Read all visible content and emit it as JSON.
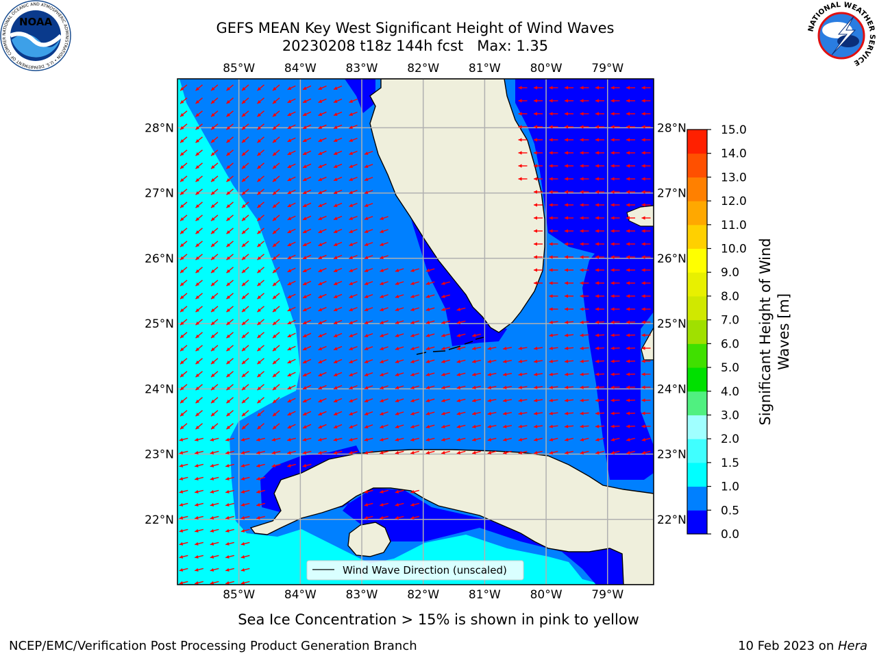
{
  "title_line1": "GEFS MEAN Key West Significant Height of Wind Waves",
  "title_line2": "20230208 t18z 144h fcst   Max: 1.35",
  "logos": {
    "noaa": {
      "text": "NOAA",
      "ring_text": "NATIONAL OCEANIC AND ATMOSPHERIC ADMINISTRATION • U.S. DEPARTMENT OF COMMERCE"
    },
    "nws": {
      "ring_text": "NATIONAL WEATHER SERVICE"
    }
  },
  "map": {
    "lon_range": [
      -86.0,
      -78.25
    ],
    "lat_range": [
      21.0,
      28.75
    ],
    "lon_ticks": [
      -85,
      -84,
      -83,
      -82,
      -81,
      -80,
      -79
    ],
    "lon_tick_labels": [
      "85°W",
      "84°W",
      "83°W",
      "82°W",
      "81°W",
      "80°W",
      "79°W"
    ],
    "lat_ticks": [
      22,
      23,
      24,
      25,
      26,
      27,
      28
    ],
    "lat_tick_labels": [
      "22°N",
      "23°N",
      "24°N",
      "25°N",
      "26°N",
      "27°N",
      "28°N"
    ],
    "land_color": "#efefdc",
    "arrow_color": "#ff0000",
    "legend_label": "Wind Wave Direction (unscaled)"
  },
  "colorbar": {
    "label_line1": "Significant Height of Wind",
    "label_line2": "Waves [m]",
    "levels": [
      0.0,
      0.5,
      1.0,
      1.5,
      2.0,
      3.0,
      4.0,
      5.0,
      6.0,
      7.0,
      8.0,
      9.0,
      10.0,
      11.0,
      12.0,
      13.0,
      14.0,
      15.0
    ],
    "tick_labels": [
      "0.0",
      "0.5",
      "1.0",
      "1.5",
      "2.0",
      "3.0",
      "4.0",
      "5.0",
      "6.0",
      "7.0",
      "8.0",
      "9.0",
      "10.0",
      "11.0",
      "12.0",
      "13.0",
      "14.0",
      "15.0"
    ],
    "colors": [
      "#0000ff",
      "#0080ff",
      "#00ffff",
      "#40ffff",
      "#a0ffff",
      "#50f080",
      "#00e000",
      "#40e000",
      "#a0e000",
      "#d0e800",
      "#e8f000",
      "#ffff00",
      "#ffd000",
      "#ffa800",
      "#ff8000",
      "#ff5000",
      "#ff2000"
    ]
  },
  "subtitle": "Sea Ice Concentration > 15% is shown in pink to yellow",
  "footer": {
    "left": "NCEP/EMC/Verification Post Processing Product Generation Branch",
    "right_prefix": "10 Feb 2023 on ",
    "right_host": "Hera"
  }
}
